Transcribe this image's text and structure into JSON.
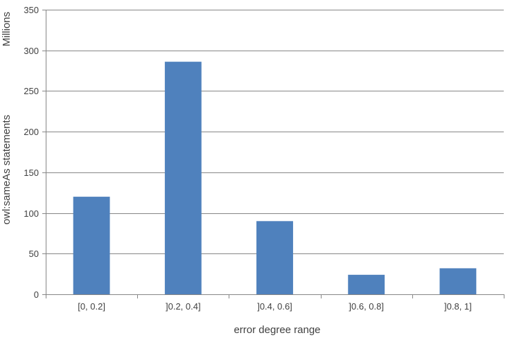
{
  "chart_data": {
    "type": "bar",
    "title": "",
    "xlabel": "error degree range",
    "ylabel": "owl:sameAs statements",
    "yunit_label": "Millions",
    "categories": [
      "[0, 0.2]",
      "]0.2, 0.4]",
      "]0.4, 0.6]",
      "]0.6, 0.8]",
      "]0.8, 1]"
    ],
    "values": [
      120,
      286,
      90,
      24,
      32
    ],
    "ylim": [
      0,
      350
    ],
    "yticks": [
      0,
      50,
      100,
      150,
      200,
      250,
      300,
      350
    ],
    "grid": true,
    "legend": "none",
    "bar_color": "#4F81BD",
    "grid_color": "#868686"
  }
}
